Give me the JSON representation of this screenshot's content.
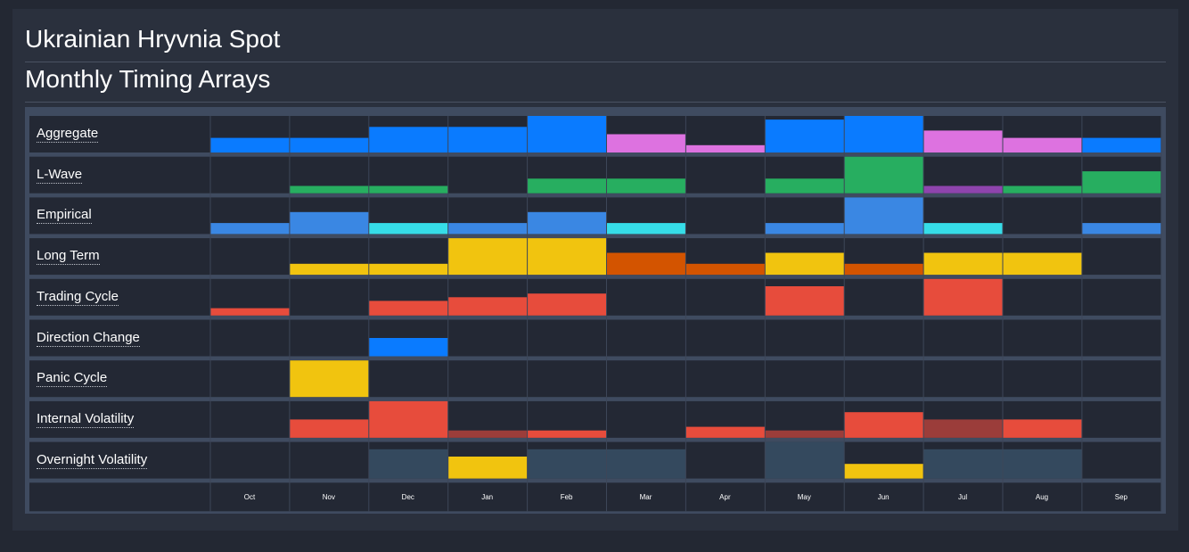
{
  "header": {
    "title": "Ukrainian Hryvnia Spot",
    "subtitle": "Monthly Timing Arrays"
  },
  "chart_data": {
    "type": "heatmap",
    "categories": [
      "Oct",
      "Nov",
      "Dec",
      "Jan",
      "Feb",
      "Mar",
      "Apr",
      "May",
      "Jun",
      "Jul",
      "Aug",
      "Sep"
    ],
    "max_level": 10,
    "series": [
      {
        "name": "Aggregate",
        "values": [
          4,
          4,
          7,
          7,
          10,
          5,
          2,
          9,
          10,
          6,
          4,
          4
        ],
        "colors": [
          "#0a7bff",
          "#0a7bff",
          "#0a7bff",
          "#0a7bff",
          "#0a7bff",
          "#dd72e0",
          "#dd72e0",
          "#0a7bff",
          "#0a7bff",
          "#dd72e0",
          "#dd72e0",
          "#0a7bff"
        ]
      },
      {
        "name": "L-Wave",
        "values": [
          0,
          2,
          2,
          0,
          4,
          4,
          0,
          4,
          10,
          2,
          2,
          6
        ],
        "colors": [
          "#27ae60",
          "#27ae60",
          "#27ae60",
          "#27ae60",
          "#27ae60",
          "#27ae60",
          "#27ae60",
          "#27ae60",
          "#27ae60",
          "#8e44ad",
          "#27ae60",
          "#27ae60"
        ]
      },
      {
        "name": "Empirical",
        "values": [
          3,
          6,
          3,
          3,
          6,
          3,
          0,
          3,
          10,
          3,
          0,
          3
        ],
        "colors": [
          "#3a87e3",
          "#3a87e3",
          "#36dde8",
          "#3a87e3",
          "#3a87e3",
          "#36dde8",
          "#3a87e3",
          "#3a87e3",
          "#3a87e3",
          "#36dde8",
          "#3a87e3",
          "#3a87e3"
        ]
      },
      {
        "name": "Long Term",
        "values": [
          0,
          3,
          3,
          10,
          10,
          6,
          3,
          6,
          3,
          6,
          6,
          0
        ],
        "colors": [
          "#f1c40f",
          "#f1c40f",
          "#f1c40f",
          "#f1c40f",
          "#f1c40f",
          "#d35400",
          "#d35400",
          "#f1c40f",
          "#d35400",
          "#f1c40f",
          "#f1c40f",
          "#f1c40f"
        ]
      },
      {
        "name": "Trading Cycle",
        "values": [
          2,
          0,
          4,
          5,
          6,
          0,
          0,
          8,
          0,
          10,
          0,
          0
        ],
        "colors": [
          "#e74c3c",
          "#e74c3c",
          "#e74c3c",
          "#e74c3c",
          "#e74c3c",
          "#e74c3c",
          "#e74c3c",
          "#e74c3c",
          "#e74c3c",
          "#e74c3c",
          "#e74c3c",
          "#e74c3c"
        ]
      },
      {
        "name": "Direction Change",
        "values": [
          0,
          0,
          5,
          0,
          0,
          0,
          0,
          0,
          0,
          0,
          0,
          0
        ],
        "colors": [
          "#0a7bff",
          "#0a7bff",
          "#0a7bff",
          "#0a7bff",
          "#0a7bff",
          "#0a7bff",
          "#0a7bff",
          "#0a7bff",
          "#0a7bff",
          "#0a7bff",
          "#0a7bff",
          "#0a7bff"
        ]
      },
      {
        "name": "Panic Cycle",
        "values": [
          0,
          10,
          0,
          0,
          0,
          0,
          0,
          0,
          0,
          0,
          0,
          0
        ],
        "colors": [
          "#f1c40f",
          "#f1c40f",
          "#f1c40f",
          "#f1c40f",
          "#f1c40f",
          "#f1c40f",
          "#f1c40f",
          "#f1c40f",
          "#f1c40f",
          "#f1c40f",
          "#f1c40f",
          "#f1c40f"
        ]
      },
      {
        "name": "Internal Volatility",
        "values": [
          0,
          5,
          10,
          2,
          2,
          0,
          3,
          2,
          7,
          5,
          5,
          0
        ],
        "colors": [
          "#e74c3c",
          "#e74c3c",
          "#e74c3c",
          "#9b3d3a",
          "#e74c3c",
          "#e74c3c",
          "#e74c3c",
          "#9b3d3a",
          "#e74c3c",
          "#9b3d3a",
          "#e74c3c",
          "#e74c3c"
        ]
      },
      {
        "name": "Overnight Volatility",
        "values": [
          0,
          0,
          8,
          6,
          8,
          8,
          0,
          10,
          4,
          8,
          8,
          0
        ],
        "colors": [
          "#34495e",
          "#34495e",
          "#34495e",
          "#f1c40f",
          "#34495e",
          "#34495e",
          "#34495e",
          "#34495e",
          "#f1c40f",
          "#34495e",
          "#34495e",
          "#34495e"
        ]
      }
    ]
  }
}
